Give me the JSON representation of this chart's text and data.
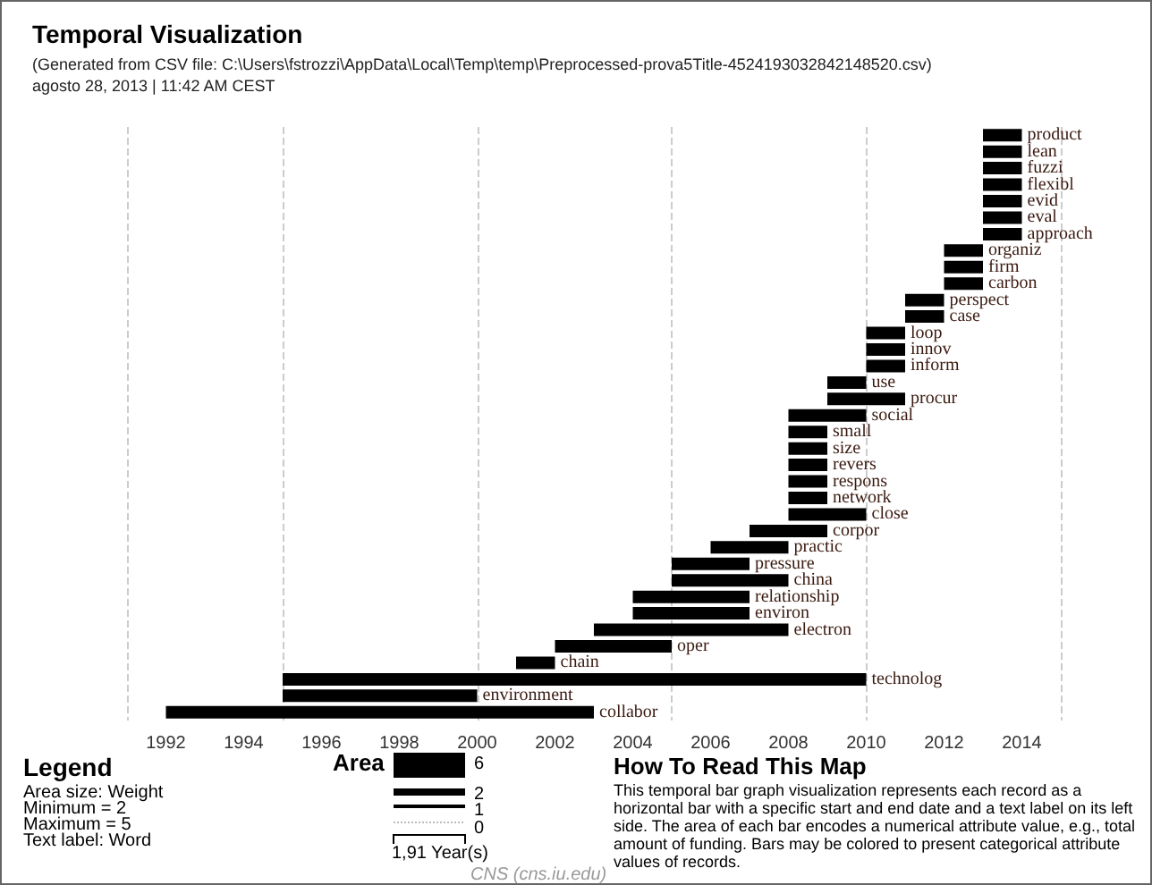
{
  "chart_data": {
    "type": "bar",
    "orientation": "horizontal",
    "title": "Temporal Visualization",
    "subtitle": "(Generated from CSV file: C:\\Users\\fstrozzi\\AppData\\Local\\Temp\\temp\\Preprocessed-prova5Title-4524193032842148520.csv)\nagosto 28, 2013 | 11:42 AM CEST",
    "categories": [
      "product",
      "lean",
      "fuzzi",
      "flexibl",
      "evid",
      "eval",
      "approach",
      "organiz",
      "firm",
      "carbon",
      "perspect",
      "case",
      "loop",
      "innov",
      "inform",
      "use",
      "procur",
      "social",
      "small",
      "size",
      "revers",
      "respons",
      "network",
      "close",
      "corpor",
      "practic",
      "pressure",
      "china",
      "relationship",
      "environ",
      "electron",
      "oper",
      "chain",
      "technolog",
      "environment",
      "collabor"
    ],
    "base": [
      2013,
      2013,
      2013,
      2013,
      2013,
      2013,
      2013,
      2012,
      2012,
      2012,
      2011,
      2011,
      2010,
      2010,
      2010,
      2009,
      2009,
      2008,
      2008,
      2008,
      2008,
      2008,
      2008,
      2008,
      2007,
      2006,
      2005,
      2005,
      2004,
      2004,
      2003,
      2002,
      2001,
      1995,
      1995,
      1992
    ],
    "values": [
      1,
      1,
      1,
      1,
      1,
      1,
      1,
      1,
      1,
      1,
      1,
      1,
      1,
      1,
      1,
      1,
      2,
      2,
      1,
      1,
      1,
      1,
      1,
      2,
      2,
      2,
      2,
      3,
      3,
      3,
      5,
      3,
      1,
      15,
      5,
      11
    ],
    "color": "#000000",
    "xlim": [
      1991,
      2015
    ],
    "xticks": [
      1992,
      1994,
      1996,
      1998,
      2000,
      2002,
      2004,
      2006,
      2008,
      2010,
      2012,
      2014
    ],
    "grid": "x",
    "tick_labels": "x",
    "annotations": [
      "Legend",
      "Area size: Weight",
      "Minimum = 2",
      "Maximum = 5",
      "Text label: Word",
      "Area",
      "6",
      "2",
      "1",
      "0",
      "1,91 Year(s)",
      "How To Read This Map",
      "This temporal bar graph visualization represents each record as a horizontal bar with a specific start and end date and a text label on its left side. The area of each bar encodes a numerical attribute value, e.g., total amount of funding. Bars may be colored to present categorical attribute values of records.",
      "CNS (cns.iu.edu)"
    ]
  }
}
